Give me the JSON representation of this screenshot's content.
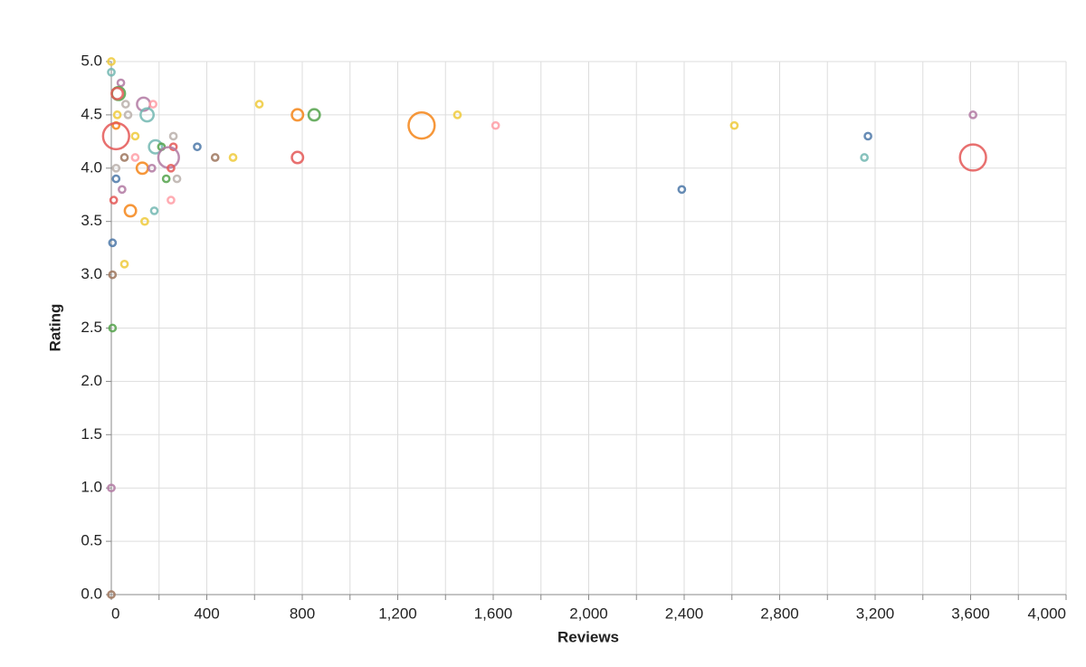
{
  "chart_data": {
    "type": "scatter",
    "x_label": "Reviews",
    "y_label": "Rating",
    "xlim": [
      0,
      4000
    ],
    "ylim": [
      0,
      5
    ],
    "xticks": [
      0,
      {
        "value": 400,
        "label": "400"
      },
      {
        "value": 800,
        "label": "800"
      },
      {
        "value": 1200,
        "label": "1,200"
      },
      {
        "value": 1600,
        "label": "1,600"
      },
      {
        "value": 2000,
        "label": "2,000"
      },
      {
        "value": 2400,
        "label": "2,400"
      },
      {
        "value": 2800,
        "label": "2,800"
      },
      {
        "value": 3200,
        "label": "3,200"
      },
      {
        "value": 3600,
        "label": "3,600"
      },
      {
        "value": 4000,
        "label": "4,000"
      }
    ],
    "x_minor_ticks": [
      200,
      600,
      1000,
      1400,
      1800,
      2200,
      2600,
      3000,
      3400,
      3800
    ],
    "yticks": [
      {
        "value": 0,
        "label": "0.0"
      },
      0.5,
      {
        "value": 1,
        "label": "1.0"
      },
      1.5,
      {
        "value": 2,
        "label": "2.0"
      },
      2.5,
      {
        "value": 3,
        "label": "3.0"
      },
      3.5,
      {
        "value": 4,
        "label": "4.0"
      },
      4.5,
      {
        "value": 5,
        "label": "5.0"
      }
    ],
    "grid": true,
    "x": [
      0,
      0,
      40,
      30,
      25,
      60,
      135,
      175,
      150,
      70,
      25,
      20,
      100,
      20,
      260,
      185,
      210,
      260,
      360,
      240,
      55,
      100,
      435,
      510,
      20,
      130,
      170,
      250,
      20,
      230,
      275,
      45,
      10,
      250,
      80,
      180,
      140,
      5,
      55,
      5,
      5,
      0,
      0,
      620,
      780,
      850,
      780,
      1300,
      1450,
      1610,
      2390,
      2610,
      3170,
      3155,
      3610,
      3610
    ],
    "values": [
      5.0,
      4.9,
      4.8,
      4.7,
      4.7,
      4.6,
      4.6,
      4.6,
      4.5,
      4.5,
      4.5,
      4.4,
      4.3,
      4.3,
      4.3,
      4.2,
      4.2,
      4.2,
      4.2,
      4.1,
      4.1,
      4.1,
      4.1,
      4.1,
      4.0,
      4.0,
      4.0,
      4.0,
      3.9,
      3.9,
      3.9,
      3.8,
      3.7,
      3.7,
      3.6,
      3.6,
      3.5,
      3.3,
      3.1,
      3.0,
      2.5,
      1.0,
      0.0,
      4.6,
      4.5,
      4.5,
      4.1,
      4.4,
      4.5,
      4.4,
      3.8,
      4.4,
      4.3,
      4.1,
      4.5,
      4.1
    ],
    "sizes": [
      1,
      1,
      1,
      4,
      3,
      1,
      4,
      1,
      4,
      1,
      1,
      1,
      1,
      16,
      1,
      4,
      1,
      1,
      1,
      10,
      1,
      1,
      1,
      1,
      1,
      3,
      1,
      1,
      1,
      1,
      1,
      1,
      1,
      1,
      3,
      1,
      1,
      1,
      1,
      1,
      1,
      1,
      1,
      1,
      3,
      3,
      3,
      16,
      1,
      1,
      1,
      1,
      1,
      1,
      1,
      16
    ],
    "colors": [
      "#eeca3b",
      "#72b7b2",
      "#b279a2",
      "#54a24b",
      "#e45756",
      "#bab0ac",
      "#b279a2",
      "#ff9da6",
      "#72b7b2",
      "#bab0ac",
      "#eeca3b",
      "#f58518",
      "#eeca3b",
      "#e45756",
      "#bab0ac",
      "#72b7b2",
      "#54a24b",
      "#e45756",
      "#4c78a8",
      "#b279a2",
      "#9d755d",
      "#ff9da6",
      "#9d755d",
      "#eeca3b",
      "#bab0ac",
      "#f58518",
      "#b279a2",
      "#e45756",
      "#4c78a8",
      "#54a24b",
      "#bab0ac",
      "#b279a2",
      "#e45756",
      "#ff9da6",
      "#f58518",
      "#72b7b2",
      "#eeca3b",
      "#4c78a8",
      "#eeca3b",
      "#9d755d",
      "#54a24b",
      "#b279a2",
      "#9d755d",
      "#eeca3b",
      "#f58518",
      "#54a24b",
      "#e45756",
      "#f58518",
      "#eeca3b",
      "#ff9da6",
      "#4c78a8",
      "#eeca3b",
      "#4c78a8",
      "#72b7b2",
      "#b279a2",
      "#e45756"
    ]
  }
}
